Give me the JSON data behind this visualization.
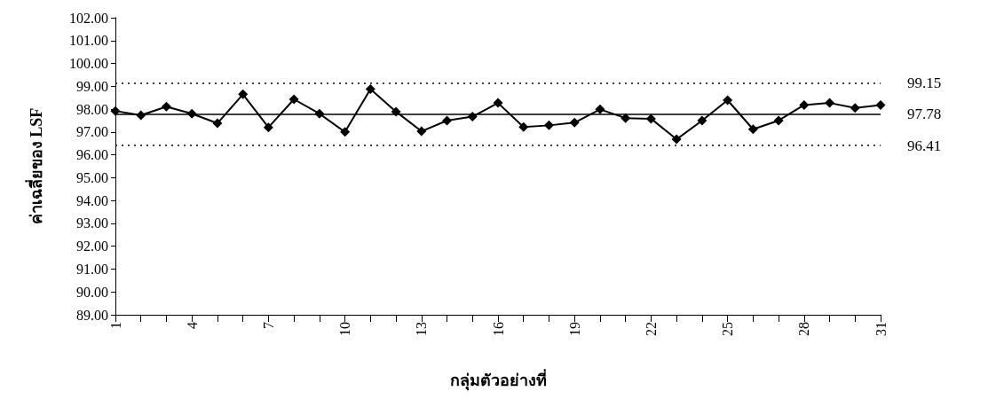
{
  "chart_data": {
    "type": "line",
    "xlabel": "กลุ่มตัวอย่างที่",
    "ylabel": "ค่าเฉลี่ยของ LSF",
    "x": [
      1,
      2,
      3,
      4,
      5,
      6,
      7,
      8,
      9,
      10,
      11,
      12,
      13,
      14,
      15,
      16,
      17,
      18,
      19,
      20,
      21,
      22,
      23,
      24,
      25,
      26,
      27,
      28,
      29,
      30,
      31
    ],
    "series": [
      {
        "color": "#000000",
        "values": [
          97.92,
          97.73,
          98.11,
          97.8,
          97.38,
          98.65,
          97.2,
          98.43,
          97.8,
          97.0,
          98.88,
          97.89,
          97.03,
          97.5,
          97.67,
          98.27,
          97.22,
          97.29,
          97.41,
          97.99,
          97.61,
          97.58,
          96.68,
          97.5,
          98.39,
          97.12,
          97.5,
          98.18,
          98.27,
          98.05,
          98.18
        ]
      }
    ],
    "xlim": [
      1,
      31
    ],
    "xticks": [
      1,
      {
        "value": 2,
        "label": null
      },
      {
        "value": 3,
        "label": null
      },
      4,
      {
        "value": 5,
        "label": null
      },
      {
        "value": 6,
        "label": null
      },
      7,
      {
        "value": 8,
        "label": null
      },
      {
        "value": 9,
        "label": null
      },
      10,
      {
        "value": 11,
        "label": null
      },
      {
        "value": 12,
        "label": null
      },
      13,
      {
        "value": 14,
        "label": null
      },
      {
        "value": 15,
        "label": null
      },
      16,
      {
        "value": 17,
        "label": null
      },
      {
        "value": 18,
        "label": null
      },
      19,
      {
        "value": 20,
        "label": null
      },
      {
        "value": 21,
        "label": null
      },
      22,
      {
        "value": 23,
        "label": null
      },
      {
        "value": 24,
        "label": null
      },
      25,
      {
        "value": 26,
        "label": null
      },
      {
        "value": 27,
        "label": null
      },
      28,
      {
        "value": 29,
        "label": null
      },
      {
        "value": 30,
        "label": null
      },
      31
    ],
    "ylim": [
      89,
      102
    ],
    "yticks": [
      {
        "value": 89,
        "label": "89.00"
      },
      {
        "value": 90,
        "label": "90.00"
      },
      {
        "value": 91,
        "label": "91.00"
      },
      {
        "value": 92,
        "label": "92.00"
      },
      {
        "value": 93,
        "label": "93.00"
      },
      {
        "value": 94,
        "label": "94.00"
      },
      {
        "value": 95,
        "label": "95.00"
      },
      {
        "value": 96,
        "label": "96.00"
      },
      {
        "value": 97,
        "label": "97.00"
      },
      {
        "value": 98,
        "label": "98.00"
      },
      {
        "value": 99,
        "label": "99.00"
      },
      {
        "value": 100,
        "label": "100.00"
      },
      {
        "value": 101,
        "label": "101.00"
      },
      {
        "value": 102,
        "label": "102.00"
      }
    ],
    "ref_lines": [
      {
        "axis": "y",
        "value": 99.15,
        "label": "99.15",
        "line_style": "dotted",
        "color": "#000000"
      },
      {
        "axis": "y",
        "value": 97.78,
        "label": "97.78",
        "line_style": "solid",
        "color": "#000000"
      },
      {
        "axis": "y",
        "value": 96.41,
        "label": "96.41",
        "line_style": "dotted",
        "color": "#000000"
      }
    ],
    "grid": false,
    "marker": "diamond",
    "line_style": "solid"
  }
}
